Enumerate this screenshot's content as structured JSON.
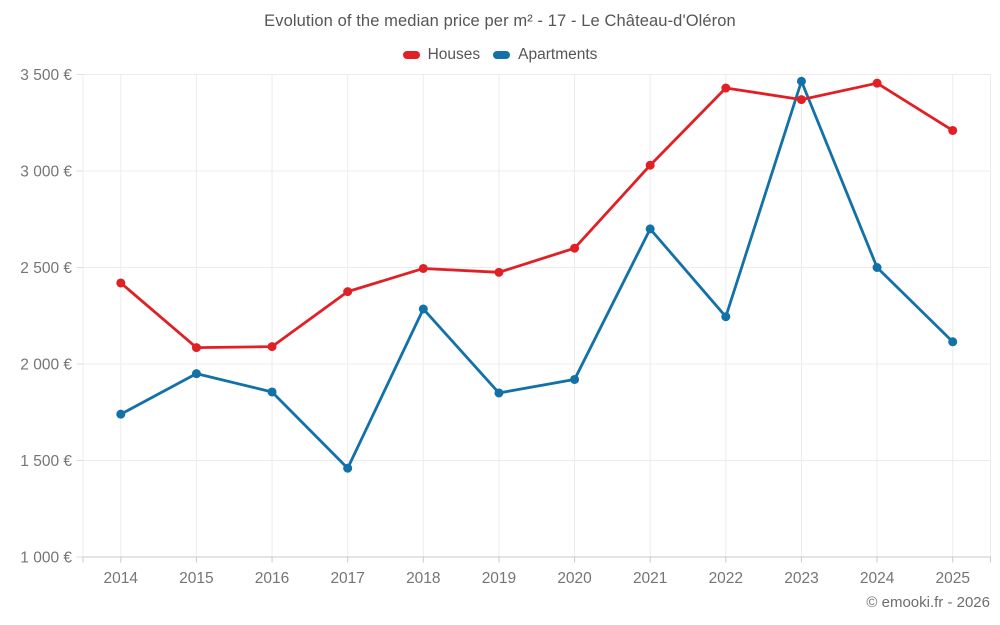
{
  "title": "Evolution of the median price per m² - 17 - Le Château-d'Oléron",
  "watermark": "© emooki.fr - 2026",
  "chart_data": {
    "type": "line",
    "x": [
      "2014",
      "2015",
      "2016",
      "2017",
      "2018",
      "2019",
      "2020",
      "2021",
      "2022",
      "2023",
      "2024",
      "2025"
    ],
    "series": [
      {
        "name": "Houses",
        "color": "#e12026",
        "values": [
          2420,
          2085,
          2090,
          2375,
          2495,
          2475,
          2600,
          3030,
          3430,
          3370,
          3455,
          3210
        ]
      },
      {
        "name": "Apartments",
        "color": "#1271a7",
        "values": [
          1740,
          1950,
          1855,
          1460,
          2285,
          1850,
          1920,
          2700,
          2245,
          3465,
          2500,
          2115
        ]
      }
    ],
    "ylim": [
      1000,
      3500
    ],
    "y_ticks": [
      {
        "value": 1000,
        "label": "1 000 €"
      },
      {
        "value": 1500,
        "label": "1 500 €"
      },
      {
        "value": 2000,
        "label": "2 000 €"
      },
      {
        "value": 2500,
        "label": "2 500 €"
      },
      {
        "value": 3000,
        "label": "3 000 €"
      },
      {
        "value": 3500,
        "label": "3 500 €"
      }
    ],
    "grid": true,
    "legend_position": "top",
    "currency": "€"
  }
}
